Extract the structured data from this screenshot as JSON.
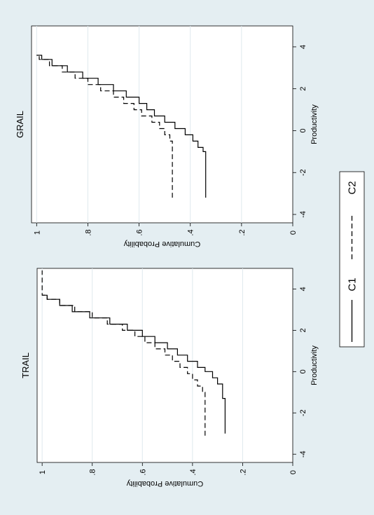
{
  "colors": {
    "outer_background": "#e4eef2",
    "plot_background": "#ffffff",
    "gridline": "#dfe9ee",
    "line": "#000000"
  },
  "orientation": "rotated-90-counterclockwise",
  "chart_data": [
    {
      "type": "line",
      "title": "TRAIL",
      "xlabel": "Productivity",
      "ylabel": "Cumulative Probability",
      "xlim": [
        -4.4,
        5.0
      ],
      "ylim": [
        0,
        1.02
      ],
      "xticks": [
        -4,
        -2,
        0,
        2,
        4
      ],
      "xtick_labels": [
        "-4",
        "-2",
        "0",
        "2",
        "4"
      ],
      "yticks": [
        0,
        0.2,
        0.4,
        0.6,
        0.8,
        1.0
      ],
      "ytick_labels": [
        "0",
        ".2",
        ".4",
        ".6",
        ".8",
        "1"
      ],
      "grid": true,
      "series": [
        {
          "name": "C1",
          "style": "solid",
          "x": [
            -3.0,
            -1.3,
            -0.6,
            -0.3,
            0.0,
            0.2,
            0.5,
            0.8,
            1.1,
            1.4,
            1.7,
            2.0,
            2.3,
            2.6,
            2.9,
            3.2,
            3.5,
            3.7
          ],
          "y": [
            0.27,
            0.28,
            0.3,
            0.32,
            0.35,
            0.38,
            0.42,
            0.46,
            0.5,
            0.55,
            0.6,
            0.66,
            0.73,
            0.81,
            0.88,
            0.93,
            0.98,
            1.0
          ]
        },
        {
          "name": "C2",
          "style": "dashed",
          "x": [
            -3.1,
            -1.0,
            -0.7,
            -0.4,
            -0.1,
            0.2,
            0.5,
            0.8,
            1.1,
            1.4,
            1.7,
            2.0,
            2.3,
            2.6,
            2.9,
            3.2,
            3.5,
            3.7,
            4.4,
            4.9
          ],
          "y": [
            0.35,
            0.36,
            0.38,
            0.4,
            0.42,
            0.45,
            0.48,
            0.51,
            0.55,
            0.59,
            0.63,
            0.68,
            0.74,
            0.8,
            0.87,
            0.93,
            0.98,
            1.0,
            1.0,
            1.0
          ]
        }
      ]
    },
    {
      "type": "line",
      "title": "GRAIL",
      "xlabel": "Productivity",
      "ylabel": "Cumulative Probability",
      "xlim": [
        -4.4,
        5.0
      ],
      "ylim": [
        0,
        1.02
      ],
      "xticks": [
        -4,
        -2,
        0,
        2,
        4
      ],
      "xtick_labels": [
        "-4",
        "-2",
        "0",
        "2",
        "4"
      ],
      "yticks": [
        0,
        0.2,
        0.4,
        0.6,
        0.8,
        1.0
      ],
      "ytick_labels": [
        "0",
        ".2",
        ".4",
        ".6",
        ".8",
        "1"
      ],
      "grid": true,
      "series": [
        {
          "name": "C1",
          "style": "solid",
          "x": [
            -3.2,
            -1.0,
            -0.8,
            -0.5,
            -0.2,
            0.1,
            0.4,
            0.7,
            1.0,
            1.3,
            1.6,
            1.9,
            2.2,
            2.5,
            2.8,
            3.1,
            3.4,
            3.6
          ],
          "y": [
            0.34,
            0.35,
            0.37,
            0.39,
            0.42,
            0.46,
            0.5,
            0.54,
            0.57,
            0.6,
            0.65,
            0.7,
            0.76,
            0.82,
            0.88,
            0.94,
            0.98,
            1.0
          ]
        },
        {
          "name": "C2",
          "style": "dashed",
          "x": [
            -3.2,
            -0.5,
            -0.2,
            0.1,
            0.4,
            0.7,
            1.0,
            1.3,
            1.6,
            1.9,
            2.2,
            2.5,
            2.8,
            3.1,
            3.4,
            3.6
          ],
          "y": [
            0.47,
            0.48,
            0.5,
            0.52,
            0.55,
            0.59,
            0.62,
            0.66,
            0.7,
            0.75,
            0.8,
            0.85,
            0.9,
            0.95,
            0.99,
            1.0
          ]
        }
      ]
    }
  ],
  "legend": {
    "items": [
      {
        "label": "C1",
        "style": "solid"
      },
      {
        "label": "C2",
        "style": "dashed"
      }
    ]
  }
}
